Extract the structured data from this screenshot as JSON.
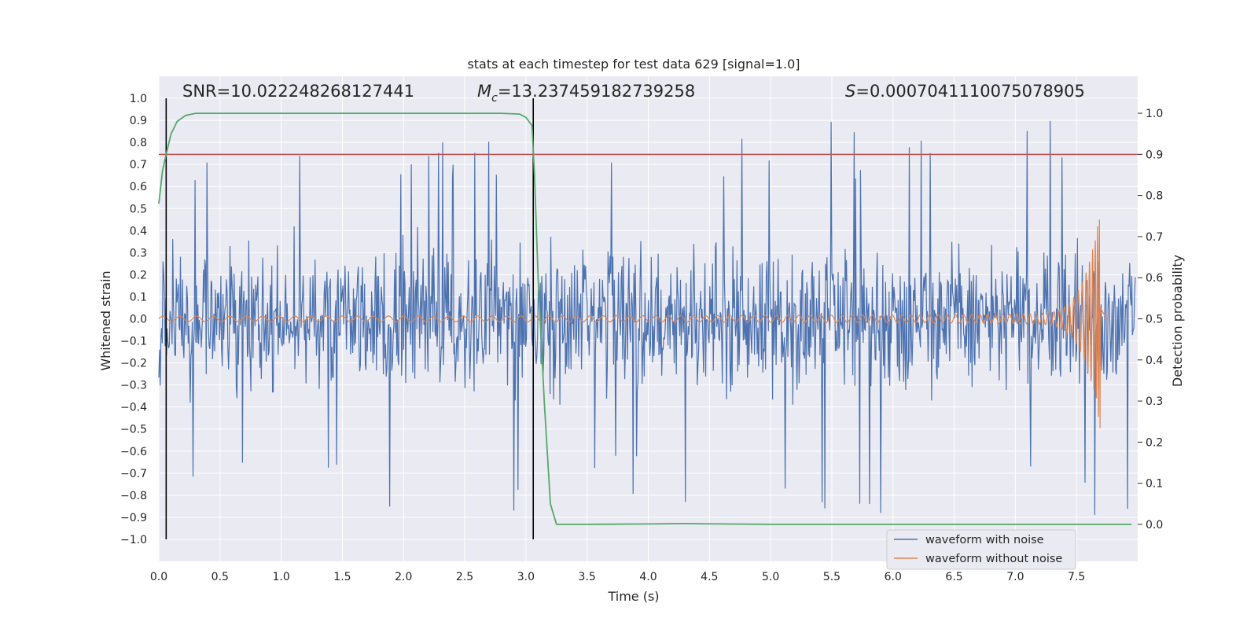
{
  "chart_data": {
    "type": "line",
    "title": "stats at each timestep for test data 629 [signal=1.0]",
    "xlabel": "Time (s)",
    "ylabel": "Whitened strain",
    "y2label": "Detection probability",
    "xlim": [
      0.0,
      8.0
    ],
    "ylim": [
      -1.1,
      1.1
    ],
    "y2lim": [
      -0.09,
      1.09
    ],
    "x_ticks": [
      "0.0",
      "0.5",
      "1.0",
      "1.5",
      "2.0",
      "2.5",
      "3.0",
      "3.5",
      "4.0",
      "4.5",
      "5.0",
      "5.5",
      "6.0",
      "6.5",
      "7.0",
      "7.5"
    ],
    "y_ticks": [
      "1.0",
      "0.9",
      "0.8",
      "0.7",
      "0.6",
      "0.5",
      "0.4",
      "0.3",
      "0.2",
      "0.1",
      "0.0",
      "−0.1",
      "−0.2",
      "−0.3",
      "−0.4",
      "−0.5",
      "−0.6",
      "−0.7",
      "−0.8",
      "−0.9",
      "−1.0"
    ],
    "y2_ticks": [
      "1.0",
      "0.9",
      "0.8",
      "0.7",
      "0.6",
      "0.5",
      "0.4",
      "0.3",
      "0.2",
      "0.1",
      "0.0"
    ],
    "grid": true,
    "legend_position": "lower-right",
    "annotations": {
      "snr": "SNR=10.022248268127441",
      "mc": "M",
      "mc_sub": "c",
      "mc_value": "=13.237459182739258",
      "s": "S",
      "s_value": "=0.0007041110075078905"
    },
    "threshold_y2": 0.9,
    "vlines_x": [
      0.06,
      3.06
    ],
    "series": [
      {
        "name": "waveform with noise",
        "color": "#4c72b0",
        "kind": "noise",
        "amplitude_typical": 0.45,
        "peak_values": [
          1.0,
          -0.99,
          0.91,
          -0.97,
          0.92,
          -0.95,
          0.98,
          0.88
        ]
      },
      {
        "name": "waveform without noise",
        "color": "#dd8452",
        "kind": "chirp",
        "x_end": 7.7,
        "max": 0.46,
        "min": -0.5
      },
      {
        "color": "#55a868",
        "axis": "y2",
        "x": [
          0.0,
          0.03,
          0.06,
          0.1,
          0.15,
          0.22,
          0.3,
          0.4,
          0.6,
          1.0,
          1.5,
          2.0,
          2.5,
          2.8,
          2.95,
          3.0,
          3.05,
          3.07,
          3.1,
          3.15,
          3.2,
          3.25,
          3.3,
          3.5,
          4.0,
          4.3,
          4.6,
          5.0,
          6.0,
          7.0,
          7.5,
          7.95
        ],
        "y": [
          0.78,
          0.86,
          0.9,
          0.95,
          0.98,
          0.995,
          1.0,
          1.0,
          1.0,
          1.0,
          1.0,
          1.0,
          1.0,
          1.0,
          0.998,
          0.99,
          0.97,
          0.85,
          0.6,
          0.3,
          0.05,
          0.0,
          0.0,
          0.0,
          0.001,
          0.002,
          0.001,
          0.0,
          0.0,
          0.0,
          0.0,
          0.0
        ]
      }
    ],
    "threshold_color": "#c44e52",
    "vline_color": "#000000",
    "plot_bg": "#eaeaf2",
    "grid_color": "#ffffff"
  }
}
